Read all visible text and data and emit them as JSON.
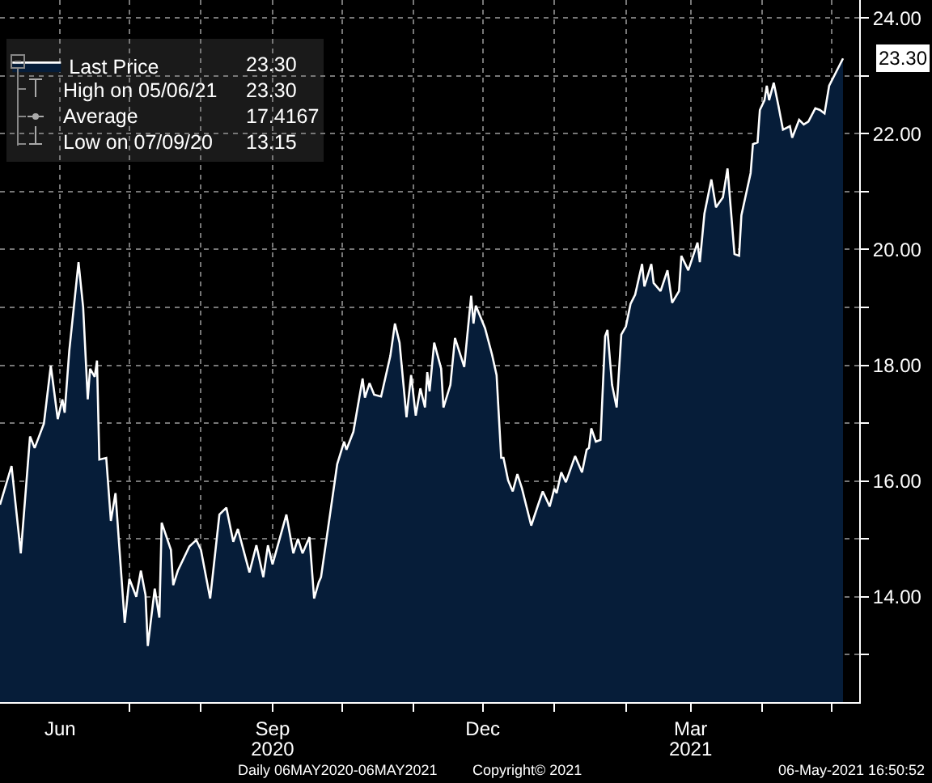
{
  "chart_data": {
    "type": "area",
    "legend": "top left",
    "grid": true,
    "line_style": "solid",
    "xlim": [
      "2020-05-06",
      "2021-05-13"
    ],
    "xticks": [
      {
        "value": "2020-06-01",
        "label": "Jun"
      },
      {
        "value": "2020-07-01",
        "label": null
      },
      {
        "value": "2020-08-01",
        "label": null
      },
      {
        "value": "2020-09-01",
        "label": "Sep"
      },
      {
        "value": "2020-10-01",
        "label": null
      },
      {
        "value": "2020-11-01",
        "label": null
      },
      {
        "value": "2020-12-01",
        "label": "Dec"
      },
      {
        "value": "2021-01-01",
        "label": null
      },
      {
        "value": "2021-02-01",
        "label": null
      },
      {
        "value": "2021-03-01",
        "label": "Mar"
      },
      {
        "value": "2021-04-01",
        "label": null
      },
      {
        "value": "2021-05-01",
        "label": null
      }
    ],
    "x2lim": [
      "2020-05-06",
      "2021-05-13"
    ],
    "x2ticks": [
      {
        "value": "2020-09-01",
        "label": "2020"
      },
      {
        "value": "2021-03-01",
        "label": "2021"
      }
    ],
    "ylim": [
      12.18,
      24.31
    ],
    "yticks": [
      {
        "value": 13,
        "label": null
      },
      {
        "value": 14,
        "label": "14.00"
      },
      {
        "value": 15,
        "label": null
      },
      {
        "value": 16,
        "label": "16.00"
      },
      {
        "value": 17,
        "label": null
      },
      {
        "value": 18,
        "label": "18.00"
      },
      {
        "value": 19,
        "label": null
      },
      {
        "value": 20,
        "label": "20.00"
      },
      {
        "value": 21,
        "label": null
      },
      {
        "value": 22,
        "label": "22.00"
      },
      {
        "value": 23,
        "label": null
      },
      {
        "value": 24,
        "label": "24.00"
      }
    ],
    "series": [
      {
        "name": "Last Price",
        "color": "#ffffff",
        "x": [
          "2020-05-06",
          "2020-05-11",
          "2020-05-15",
          "2020-05-19",
          "2020-05-21",
          "2020-05-25",
          "2020-05-28",
          "2020-05-31",
          "2020-06-02",
          "2020-06-03",
          "2020-06-05",
          "2020-06-09",
          "2020-06-11",
          "2020-06-13",
          "2020-06-14",
          "2020-06-16",
          "2020-06-17",
          "2020-06-18",
          "2020-06-21",
          "2020-06-23",
          "2020-06-25",
          "2020-06-29",
          "2020-07-01",
          "2020-07-04",
          "2020-07-06",
          "2020-07-08",
          "2020-07-09",
          "2020-07-12",
          "2020-07-14",
          "2020-07-15",
          "2020-07-19",
          "2020-07-20",
          "2020-07-22",
          "2020-07-27",
          "2020-07-30",
          "2020-08-01",
          "2020-08-05",
          "2020-08-09",
          "2020-08-12",
          "2020-08-15",
          "2020-08-17",
          "2020-08-22",
          "2020-08-25",
          "2020-08-28",
          "2020-08-30",
          "2020-09-01",
          "2020-09-07",
          "2020-09-10",
          "2020-09-12",
          "2020-09-14",
          "2020-09-17",
          "2020-09-19",
          "2020-09-21",
          "2020-09-22",
          "2020-09-28",
          "2020-09-29",
          "2020-10-02",
          "2020-10-03",
          "2020-10-06",
          "2020-10-10",
          "2020-10-11",
          "2020-10-13",
          "2020-10-15",
          "2020-10-18",
          "2020-10-22",
          "2020-10-24",
          "2020-10-26",
          "2020-10-29",
          "2020-10-31",
          "2020-11-02",
          "2020-11-04",
          "2020-11-06",
          "2020-11-07",
          "2020-11-08",
          "2020-11-10",
          "2020-11-13",
          "2020-11-14",
          "2020-11-17",
          "2020-11-19",
          "2020-11-23",
          "2020-11-26",
          "2020-11-27",
          "2020-11-28",
          "2020-12-02",
          "2020-12-05",
          "2020-12-07",
          "2020-12-09",
          "2020-12-10",
          "2020-12-12",
          "2020-12-14",
          "2020-12-16",
          "2020-12-18",
          "2020-12-22",
          "2020-12-25",
          "2020-12-27",
          "2020-12-30",
          "2021-01-01",
          "2021-01-02",
          "2021-01-04",
          "2021-01-06",
          "2021-01-10",
          "2021-01-13",
          "2021-01-15",
          "2021-01-16",
          "2021-01-17",
          "2021-01-19",
          "2021-01-21",
          "2021-01-23",
          "2021-01-24",
          "2021-01-26",
          "2021-01-28",
          "2021-01-30",
          "2021-02-01",
          "2021-02-03",
          "2021-02-05",
          "2021-02-08",
          "2021-02-09",
          "2021-02-12",
          "2021-02-13",
          "2021-02-16",
          "2021-02-19",
          "2021-02-21",
          "2021-02-24",
          "2021-02-25",
          "2021-02-28",
          "2021-03-04",
          "2021-03-05",
          "2021-03-07",
          "2021-03-10",
          "2021-03-12",
          "2021-03-15",
          "2021-03-17",
          "2021-03-20",
          "2021-03-22",
          "2021-03-23",
          "2021-03-27",
          "2021-03-28",
          "2021-03-30",
          "2021-03-31",
          "2021-04-02",
          "2021-04-03",
          "2021-04-04",
          "2021-04-06",
          "2021-04-08",
          "2021-04-10",
          "2021-04-13",
          "2021-04-14",
          "2021-04-17",
          "2021-04-19",
          "2021-04-21",
          "2021-04-24",
          "2021-04-26",
          "2021-04-28",
          "2021-04-30",
          "2021-05-06"
        ],
        "values": [
          15.59,
          16.26,
          14.75,
          16.77,
          16.57,
          16.99,
          17.99,
          17.07,
          17.41,
          17.18,
          18.25,
          19.78,
          19.0,
          17.41,
          17.94,
          17.8,
          18.08,
          16.37,
          16.4,
          15.31,
          15.79,
          13.55,
          14.31,
          14.0,
          14.45,
          14.03,
          13.15,
          14.14,
          13.64,
          15.28,
          14.81,
          14.2,
          14.45,
          14.87,
          14.98,
          14.81,
          13.97,
          15.42,
          15.54,
          14.95,
          15.17,
          14.42,
          14.89,
          14.34,
          14.89,
          14.56,
          15.42,
          14.75,
          15.0,
          14.75,
          15.03,
          13.97,
          14.25,
          14.34,
          16.01,
          16.29,
          16.68,
          16.54,
          16.85,
          17.77,
          17.44,
          17.69,
          17.49,
          17.46,
          18.16,
          18.72,
          18.39,
          17.1,
          17.83,
          17.13,
          17.6,
          17.27,
          17.88,
          17.55,
          18.39,
          17.94,
          17.27,
          17.66,
          18.47,
          17.97,
          19.2,
          18.72,
          19.03,
          18.64,
          18.19,
          17.83,
          16.4,
          16.4,
          16.01,
          15.82,
          16.12,
          15.87,
          15.23,
          15.59,
          15.82,
          15.56,
          15.87,
          15.79,
          16.15,
          15.98,
          16.43,
          16.15,
          16.54,
          16.57,
          16.91,
          16.68,
          16.71,
          18.5,
          18.61,
          17.66,
          17.27,
          18.53,
          18.67,
          19.06,
          19.22,
          19.75,
          19.36,
          19.75,
          19.42,
          19.28,
          19.64,
          19.08,
          19.28,
          19.89,
          19.64,
          20.12,
          19.78,
          20.62,
          21.21,
          20.73,
          20.9,
          21.4,
          19.92,
          19.89,
          20.59,
          21.32,
          21.82,
          21.85,
          22.41,
          22.58,
          22.83,
          22.58,
          22.88,
          22.49,
          22.07,
          22.13,
          21.93,
          22.24,
          22.16,
          22.21,
          22.44,
          22.41,
          22.35,
          22.83,
          23.3
        ]
      }
    ],
    "annotations": [
      "23.30",
      "High on 05/06/21",
      "23.30",
      "Average",
      "17.4167",
      "Low on 07/09/20",
      "13.15",
      {
        "text": "23.30",
        "x": "2021-05-06",
        "y": 23.3
      },
      "Daily 06MAY2020-06MAY2021",
      "Copyright© 2021",
      "06-May-2021 16:50:52"
    ]
  }
}
